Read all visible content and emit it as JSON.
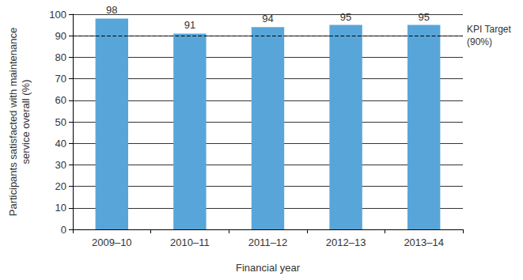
{
  "chart_data": {
    "type": "bar",
    "ylabel": "Participants satisfacted with maintenance\nservice overall (%)",
    "xlabel": "Financial year",
    "categories": [
      "2009–10",
      "2010–11",
      "2011–12",
      "2012–13",
      "2013–14"
    ],
    "values": [
      98,
      91,
      94,
      95,
      95
    ],
    "color": "#58a6d9",
    "ylim": [
      0,
      100
    ],
    "yticks": [
      0,
      10,
      20,
      30,
      40,
      50,
      60,
      70,
      80,
      90,
      100
    ],
    "grid": true,
    "data_labels": true,
    "annotations": [
      {
        "type": "hline",
        "y": 90,
        "text": "KPI Target\n(90%)",
        "line_style": "dashed",
        "color": "#000000"
      }
    ]
  }
}
